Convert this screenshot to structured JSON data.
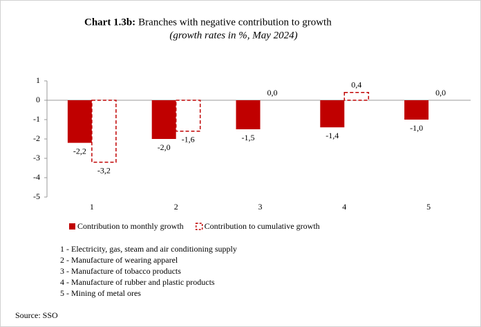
{
  "chart_data": {
    "type": "bar",
    "title_label": "Chart 1.3b:",
    "title": "Branches with negative contribution to growth",
    "subtitle": "(growth rates in %, May 2024)",
    "categories": [
      "1",
      "2",
      "3",
      "4",
      "5"
    ],
    "series": [
      {
        "name": "Contribution to monthly growth",
        "color": "#c00000",
        "style": "solid",
        "values": [
          -2.2,
          -2.0,
          -1.5,
          -1.4,
          -1.0
        ],
        "value_labels": [
          "-2,2",
          "-2,0",
          "-1,5",
          "-1,4",
          "-1,0"
        ]
      },
      {
        "name": "Contribution to cumulative growth",
        "color": "#c00000",
        "style": "dashed",
        "values": [
          -3.2,
          -1.6,
          0.0,
          0.4,
          0.0
        ],
        "value_labels": [
          "-3,2",
          "-1,6",
          "0,0",
          "0,4",
          "0,0"
        ]
      }
    ],
    "ylim": [
      -5,
      1
    ],
    "yticks": [
      1,
      0,
      -1,
      -2,
      -3,
      -4,
      -5
    ],
    "legend": "bottom",
    "notes": [
      "1 - Electricity, gas, steam and air conditioning supply",
      "2 - Manufacture of wearing apparel",
      "3 - Manufacture of tobacco products",
      "4 - Manufacture of rubber and plastic products",
      "5 - Mining of metal ores"
    ],
    "source": "Source: SSO"
  }
}
